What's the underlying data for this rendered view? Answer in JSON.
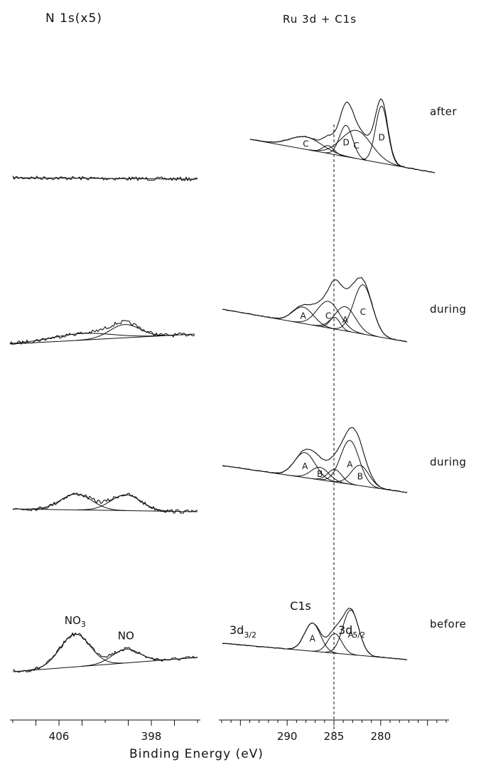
{
  "chart_data": [
    {
      "type": "line",
      "title": "N 1s(x5)",
      "xlabel": "Binding Energy (eV)",
      "x_reversed": true,
      "xlim": [
        410,
        394
      ],
      "x_ticks": [
        406,
        398
      ],
      "spectra": [
        {
          "condition": "after",
          "components": []
        },
        {
          "condition": "during",
          "components": [
            {
              "center": 404.0,
              "height": 1.3,
              "width": 2.6
            },
            {
              "center": 400.3,
              "height": 2.6,
              "width": 1.3
            }
          ]
        },
        {
          "condition": "during",
          "components": [
            {
              "center": 404.5,
              "height": 3.1,
              "width": 1.35
            },
            {
              "center": 400.2,
              "height": 3.1,
              "width": 1.3
            }
          ]
        },
        {
          "condition": "before",
          "components": [
            {
              "center": 404.6,
              "height": 6.4,
              "width": 1.3,
              "label": "NO3"
            },
            {
              "center": 400.2,
              "height": 2.7,
              "width": 1.2,
              "label": "NO"
            }
          ]
        }
      ]
    },
    {
      "type": "line",
      "title": "Ru 3d + C1s",
      "xlabel": "Binding Energy (eV)",
      "x_reversed": true,
      "xlim": [
        297,
        273
      ],
      "x_ticks": [
        290,
        285,
        280
      ],
      "reference_line": 285,
      "spectra": [
        {
          "condition": "after",
          "components": [
            {
              "center": 288.0,
              "height": 1.6,
              "width": 1.7,
              "label": "C"
            },
            {
              "center": 285.6,
              "height": 1.0,
              "width": 0.6,
              "label": ""
            },
            {
              "center": 283.7,
              "height": 4.0,
              "width": 0.7,
              "label": "D"
            },
            {
              "center": 282.6,
              "height": 3.6,
              "width": 1.6,
              "label": "C"
            },
            {
              "center": 279.9,
              "height": 7.3,
              "width": 0.65,
              "label": "D"
            }
          ]
        },
        {
          "condition": "during",
          "components": [
            {
              "center": 288.3,
              "height": 2.1,
              "width": 1.1,
              "label": "A"
            },
            {
              "center": 285.6,
              "height": 3.4,
              "width": 1.2,
              "label": "C"
            },
            {
              "center": 284.9,
              "height": 1.5,
              "width": 0.55,
              "label": ""
            },
            {
              "center": 283.8,
              "height": 3.1,
              "width": 1.1,
              "label": "A"
            },
            {
              "center": 281.9,
              "height": 6.3,
              "width": 1.0,
              "label": "C"
            }
          ]
        },
        {
          "condition": "during",
          "components": [
            {
              "center": 288.1,
              "height": 3.2,
              "width": 1.1,
              "label": "A"
            },
            {
              "center": 286.5,
              "height": 1.6,
              "width": 0.95,
              "label": "B"
            },
            {
              "center": 284.9,
              "height": 1.6,
              "width": 0.75,
              "label": ""
            },
            {
              "center": 283.3,
              "height": 5.6,
              "width": 1.0,
              "label": "A"
            },
            {
              "center": 282.2,
              "height": 2.6,
              "width": 0.95,
              "label": "B"
            }
          ]
        },
        {
          "condition": "before",
          "components": [
            {
              "center": 287.3,
              "height": 3.6,
              "width": 0.85,
              "label": "A"
            },
            {
              "center": 284.9,
              "height": 2.5,
              "width": 0.75,
              "label": ""
            },
            {
              "center": 283.2,
              "height": 5.7,
              "width": 0.85,
              "label": "A"
            }
          ]
        }
      ],
      "annotations": [
        {
          "text": "3d",
          "sub": "3/2"
        },
        {
          "text": "C1s"
        },
        {
          "text": "3d",
          "sub": "5/2"
        }
      ]
    }
  ]
}
